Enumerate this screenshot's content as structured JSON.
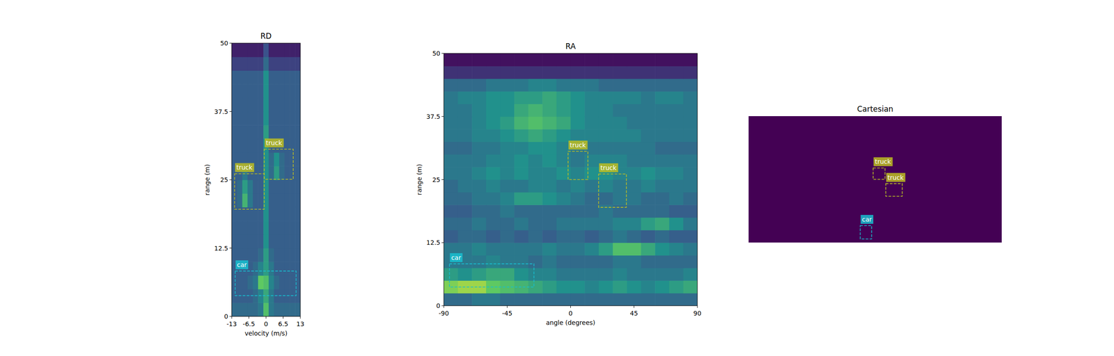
{
  "chart_data": [
    {
      "type": "heatmap",
      "title": "RD",
      "xlabel": "velocity (m/s)",
      "ylabel": "range (m)",
      "xlim": [
        -13,
        13
      ],
      "ylim": [
        0,
        50
      ],
      "xticks": [
        -13,
        -6.5,
        0,
        6.5,
        13
      ],
      "yticks": [
        0,
        12.5,
        25,
        37.5,
        50
      ],
      "zlim": [
        0,
        1
      ],
      "cells": [
        [
          0.35,
          0.35,
          0.35,
          0.35,
          0.35,
          0.4,
          0.7,
          0.4,
          0.35,
          0.35,
          0.35,
          0.35,
          0.35
        ],
        [
          0.3,
          0.3,
          0.3,
          0.3,
          0.35,
          0.45,
          0.6,
          0.4,
          0.3,
          0.3,
          0.3,
          0.3,
          0.3
        ],
        [
          0.3,
          0.3,
          0.3,
          0.35,
          0.4,
          0.75,
          0.7,
          0.45,
          0.35,
          0.3,
          0.3,
          0.3,
          0.3
        ],
        [
          0.3,
          0.3,
          0.3,
          0.3,
          0.35,
          0.45,
          0.55,
          0.4,
          0.3,
          0.3,
          0.3,
          0.3,
          0.3
        ],
        [
          0.3,
          0.3,
          0.3,
          0.3,
          0.3,
          0.35,
          0.55,
          0.35,
          0.3,
          0.3,
          0.3,
          0.3,
          0.3
        ],
        [
          0.3,
          0.3,
          0.3,
          0.3,
          0.3,
          0.3,
          0.5,
          0.3,
          0.3,
          0.3,
          0.3,
          0.3,
          0.3
        ],
        [
          0.3,
          0.3,
          0.3,
          0.3,
          0.3,
          0.3,
          0.5,
          0.3,
          0.3,
          0.3,
          0.3,
          0.3,
          0.3
        ],
        [
          0.3,
          0.3,
          0.3,
          0.3,
          0.3,
          0.3,
          0.5,
          0.3,
          0.3,
          0.3,
          0.3,
          0.3,
          0.3
        ],
        [
          0.3,
          0.35,
          0.65,
          0.4,
          0.3,
          0.3,
          0.5,
          0.3,
          0.3,
          0.3,
          0.3,
          0.3,
          0.3
        ],
        [
          0.3,
          0.35,
          0.55,
          0.4,
          0.3,
          0.3,
          0.5,
          0.3,
          0.3,
          0.3,
          0.3,
          0.3,
          0.3
        ],
        [
          0.3,
          0.3,
          0.4,
          0.3,
          0.3,
          0.3,
          0.5,
          0.35,
          0.55,
          0.35,
          0.3,
          0.3,
          0.3
        ],
        [
          0.3,
          0.3,
          0.3,
          0.3,
          0.3,
          0.3,
          0.5,
          0.35,
          0.5,
          0.35,
          0.3,
          0.3,
          0.3
        ],
        [
          0.3,
          0.3,
          0.3,
          0.3,
          0.3,
          0.3,
          0.5,
          0.3,
          0.3,
          0.3,
          0.3,
          0.3,
          0.3
        ],
        [
          0.3,
          0.3,
          0.3,
          0.3,
          0.3,
          0.3,
          0.55,
          0.3,
          0.3,
          0.3,
          0.3,
          0.3,
          0.3
        ],
        [
          0.3,
          0.3,
          0.3,
          0.3,
          0.3,
          0.3,
          0.5,
          0.3,
          0.3,
          0.3,
          0.3,
          0.3,
          0.3
        ],
        [
          0.3,
          0.3,
          0.3,
          0.3,
          0.3,
          0.3,
          0.5,
          0.3,
          0.3,
          0.3,
          0.3,
          0.3,
          0.3
        ],
        [
          0.3,
          0.3,
          0.3,
          0.3,
          0.3,
          0.3,
          0.5,
          0.3,
          0.3,
          0.3,
          0.3,
          0.3,
          0.3
        ],
        [
          0.3,
          0.3,
          0.3,
          0.3,
          0.3,
          0.3,
          0.5,
          0.3,
          0.3,
          0.3,
          0.3,
          0.3,
          0.3
        ],
        [
          0.2,
          0.2,
          0.2,
          0.2,
          0.2,
          0.2,
          0.35,
          0.2,
          0.2,
          0.2,
          0.2,
          0.2,
          0.2
        ],
        [
          0.1,
          0.1,
          0.1,
          0.1,
          0.1,
          0.1,
          0.25,
          0.1,
          0.1,
          0.1,
          0.1,
          0.1,
          0.1
        ]
      ],
      "boxes": [
        {
          "label": "truck",
          "color": "#bcbd22",
          "xmin": -0.7,
          "xmax": 10.3,
          "ymin": 25.1,
          "ymax": 30.6
        },
        {
          "label": "truck",
          "color": "#bcbd22",
          "xmin": -11.9,
          "xmax": -0.7,
          "ymin": 19.6,
          "ymax": 26.1
        },
        {
          "label": "car",
          "color": "#17becf",
          "xmin": -11.7,
          "xmax": 11.4,
          "ymin": 3.8,
          "ymax": 8.3
        }
      ]
    },
    {
      "type": "heatmap",
      "title": "RA",
      "xlabel": "angle (degrees)",
      "ylabel": "range (m)",
      "xlim": [
        -90,
        90
      ],
      "ylim": [
        0,
        50
      ],
      "xticks": [
        -90,
        -45,
        0,
        45,
        90
      ],
      "yticks": [
        0,
        12.5,
        25,
        37.5,
        50
      ],
      "zlim": [
        0,
        1
      ],
      "cells": [
        [
          0.35,
          0.35,
          0.4,
          0.4,
          0.35,
          0.35,
          0.35,
          0.35,
          0.35,
          0.35,
          0.35,
          0.35,
          0.35,
          0.35,
          0.35,
          0.35,
          0.35,
          0.35
        ],
        [
          0.8,
          0.85,
          0.85,
          0.75,
          0.7,
          0.65,
          0.6,
          0.55,
          0.5,
          0.5,
          0.45,
          0.5,
          0.55,
          0.5,
          0.45,
          0.5,
          0.55,
          0.6
        ],
        [
          0.55,
          0.5,
          0.55,
          0.6,
          0.6,
          0.5,
          0.45,
          0.45,
          0.4,
          0.4,
          0.4,
          0.4,
          0.45,
          0.4,
          0.4,
          0.4,
          0.4,
          0.45
        ],
        [
          0.4,
          0.4,
          0.4,
          0.45,
          0.4,
          0.4,
          0.35,
          0.4,
          0.35,
          0.35,
          0.35,
          0.35,
          0.4,
          0.4,
          0.35,
          0.35,
          0.35,
          0.35
        ],
        [
          0.4,
          0.4,
          0.45,
          0.4,
          0.4,
          0.4,
          0.4,
          0.45,
          0.4,
          0.4,
          0.45,
          0.55,
          0.7,
          0.7,
          0.6,
          0.5,
          0.45,
          0.4
        ],
        [
          0.3,
          0.35,
          0.35,
          0.3,
          0.35,
          0.3,
          0.35,
          0.3,
          0.35,
          0.35,
          0.3,
          0.35,
          0.4,
          0.35,
          0.3,
          0.35,
          0.3,
          0.3
        ],
        [
          0.35,
          0.35,
          0.4,
          0.35,
          0.35,
          0.4,
          0.35,
          0.35,
          0.4,
          0.4,
          0.4,
          0.4,
          0.45,
          0.45,
          0.55,
          0.6,
          0.5,
          0.4
        ],
        [
          0.3,
          0.3,
          0.35,
          0.35,
          0.4,
          0.35,
          0.35,
          0.35,
          0.35,
          0.35,
          0.35,
          0.4,
          0.35,
          0.35,
          0.35,
          0.35,
          0.3,
          0.3
        ],
        [
          0.35,
          0.35,
          0.4,
          0.4,
          0.45,
          0.55,
          0.55,
          0.5,
          0.45,
          0.4,
          0.35,
          0.35,
          0.4,
          0.4,
          0.35,
          0.35,
          0.4,
          0.35
        ],
        [
          0.35,
          0.4,
          0.4,
          0.45,
          0.4,
          0.4,
          0.45,
          0.45,
          0.4,
          0.45,
          0.4,
          0.45,
          0.4,
          0.4,
          0.45,
          0.4,
          0.4,
          0.4
        ],
        [
          0.4,
          0.4,
          0.45,
          0.5,
          0.45,
          0.5,
          0.45,
          0.45,
          0.5,
          0.45,
          0.5,
          0.5,
          0.45,
          0.45,
          0.5,
          0.45,
          0.45,
          0.4
        ],
        [
          0.4,
          0.4,
          0.4,
          0.45,
          0.45,
          0.5,
          0.45,
          0.5,
          0.45,
          0.4,
          0.45,
          0.45,
          0.45,
          0.4,
          0.4,
          0.4,
          0.4,
          0.4
        ],
        [
          0.35,
          0.35,
          0.4,
          0.4,
          0.45,
          0.45,
          0.5,
          0.5,
          0.45,
          0.4,
          0.4,
          0.4,
          0.4,
          0.4,
          0.4,
          0.35,
          0.35,
          0.35
        ],
        [
          0.4,
          0.4,
          0.45,
          0.45,
          0.5,
          0.55,
          0.6,
          0.55,
          0.5,
          0.45,
          0.45,
          0.45,
          0.45,
          0.45,
          0.4,
          0.4,
          0.4,
          0.4
        ],
        [
          0.4,
          0.4,
          0.45,
          0.5,
          0.55,
          0.65,
          0.7,
          0.65,
          0.6,
          0.5,
          0.45,
          0.45,
          0.45,
          0.4,
          0.4,
          0.4,
          0.4,
          0.4
        ],
        [
          0.4,
          0.4,
          0.45,
          0.5,
          0.5,
          0.6,
          0.65,
          0.6,
          0.55,
          0.5,
          0.45,
          0.45,
          0.4,
          0.4,
          0.4,
          0.4,
          0.4,
          0.4
        ],
        [
          0.4,
          0.45,
          0.45,
          0.5,
          0.5,
          0.55,
          0.55,
          0.6,
          0.55,
          0.5,
          0.45,
          0.45,
          0.45,
          0.45,
          0.4,
          0.45,
          0.45,
          0.4
        ],
        [
          0.35,
          0.35,
          0.35,
          0.4,
          0.4,
          0.4,
          0.45,
          0.45,
          0.4,
          0.4,
          0.4,
          0.35,
          0.35,
          0.35,
          0.35,
          0.35,
          0.35,
          0.35
        ],
        [
          0.15,
          0.15,
          0.15,
          0.15,
          0.15,
          0.15,
          0.15,
          0.15,
          0.15,
          0.15,
          0.15,
          0.15,
          0.15,
          0.15,
          0.15,
          0.15,
          0.15,
          0.15
        ],
        [
          0.05,
          0.05,
          0.05,
          0.05,
          0.05,
          0.05,
          0.05,
          0.05,
          0.05,
          0.05,
          0.05,
          0.05,
          0.05,
          0.05,
          0.05,
          0.05,
          0.05,
          0.05
        ]
      ],
      "boxes": [
        {
          "label": "truck",
          "color": "#bcbd22",
          "xmin": -1.8,
          "xmax": 12.3,
          "ymin": 25.0,
          "ymax": 30.6
        },
        {
          "label": "truck",
          "color": "#bcbd22",
          "xmin": 19.9,
          "xmax": 39.6,
          "ymin": 19.5,
          "ymax": 26.1
        },
        {
          "label": "car",
          "color": "#17becf",
          "xmin": -86,
          "xmax": -26,
          "ymin": 3.7,
          "ymax": 8.3
        }
      ]
    },
    {
      "type": "heatmap",
      "title": "Cartesian",
      "xlim": [
        -50,
        50
      ],
      "ylim": [
        0,
        50
      ],
      "tick_labels": false,
      "color": "#440154",
      "boxes": [
        {
          "label": "truck",
          "color": "#bcbd22",
          "xmin": -0.8,
          "xmax": 3.9,
          "ymin": 25.0,
          "ymax": 29.5
        },
        {
          "label": "truck",
          "color": "#bcbd22",
          "xmin": 4.2,
          "xmax": 10.7,
          "ymin": 18.3,
          "ymax": 23.3
        },
        {
          "label": "car",
          "color": "#17becf",
          "xmin": -5.9,
          "xmax": -1.4,
          "ymin": 1.4,
          "ymax": 6.7
        }
      ]
    }
  ]
}
